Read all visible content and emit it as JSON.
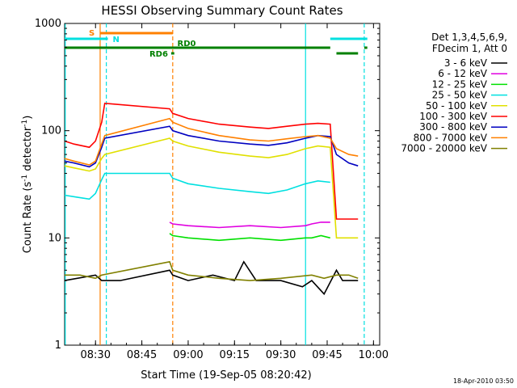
{
  "chart_data": {
    "type": "line",
    "title": "HESSI Observing Summary Count Rates",
    "xlabel": "Start Time (19-Sep-05 08:20:42)",
    "ylabel": "Count Rate (s",
    "ylabel_sup1": "-1",
    "ylabel_mid": " detector",
    "ylabel_sup2": "-1",
    "ylabel_end": ")",
    "footer": "18-Apr-2010 03:50",
    "y_scale": "log",
    "ylim": [
      1,
      1000
    ],
    "xlim_minutes": [
      0,
      102
    ],
    "y_ticks": [
      {
        "value": 1,
        "label": "1"
      },
      {
        "value": 10,
        "label": "10"
      },
      {
        "value": 100,
        "label": "100"
      },
      {
        "value": 1000,
        "label": "1000"
      }
    ],
    "x_ticks": [
      {
        "minute": 10,
        "label": "08:30"
      },
      {
        "minute": 25,
        "label": "08:45"
      },
      {
        "minute": 40,
        "label": "09:00"
      },
      {
        "minute": 55,
        "label": "09:15"
      },
      {
        "minute": 70,
        "label": "09:30"
      },
      {
        "minute": 85,
        "label": "09:45"
      },
      {
        "minute": 100,
        "label": "10:00"
      }
    ],
    "legend_header": [
      "Det 1,3,4,5,6,9,",
      "FDecim 1, Att 0"
    ],
    "legend_placement": "right",
    "series": [
      {
        "name": "3 - 6 keV",
        "color": "#000000",
        "x": [
          0,
          10,
          12,
          18,
          34,
          35,
          40,
          48,
          55,
          58,
          62,
          70,
          77,
          80,
          84,
          88,
          90,
          95
        ],
        "y": [
          4,
          4.5,
          4,
          4,
          5,
          4.5,
          4,
          4.5,
          4,
          6,
          4,
          4,
          3.5,
          4,
          3,
          5,
          4,
          4
        ]
      },
      {
        "name": "6 - 12 keV",
        "color": "#e000e0",
        "x": [
          34,
          35,
          40,
          50,
          60,
          70,
          78,
          80,
          83,
          86
        ],
        "y": [
          14,
          13.5,
          13,
          12.5,
          13,
          12.5,
          13,
          13.5,
          14,
          14
        ]
      },
      {
        "name": "12 - 25 keV",
        "color": "#00e000",
        "x": [
          34,
          35,
          40,
          50,
          60,
          70,
          78,
          80,
          83,
          86
        ],
        "y": [
          11,
          10.5,
          10,
          9.5,
          10,
          9.5,
          10,
          10,
          10.5,
          10
        ]
      },
      {
        "name": "25 - 50 keV",
        "color": "#00e0e0",
        "x": [
          0,
          4,
          8,
          10,
          12,
          13,
          34,
          35,
          40,
          50,
          60,
          66,
          72,
          78,
          82,
          86
        ],
        "y": [
          25,
          24,
          23,
          26,
          35,
          40,
          40,
          36,
          32,
          29,
          27,
          26,
          28,
          32,
          34,
          33
        ]
      },
      {
        "name": "50 - 100 keV",
        "color": "#e0e000",
        "x": [
          0,
          3,
          8,
          10,
          12,
          13,
          34,
          35,
          40,
          50,
          60,
          66,
          72,
          78,
          82,
          86,
          88,
          92,
          95
        ],
        "y": [
          47,
          45,
          42,
          44,
          55,
          60,
          85,
          80,
          72,
          63,
          58,
          56,
          60,
          68,
          72,
          70,
          10,
          10,
          10
        ]
      },
      {
        "name": "100 - 300 keV",
        "color": "#ff0000",
        "x": [
          0,
          3,
          8,
          10,
          12,
          13,
          34,
          35,
          40,
          50,
          60,
          66,
          72,
          78,
          82,
          86,
          88,
          92,
          95
        ],
        "y": [
          80,
          75,
          70,
          80,
          120,
          180,
          160,
          145,
          130,
          115,
          108,
          105,
          110,
          115,
          117,
          115,
          15,
          15,
          15
        ]
      },
      {
        "name": "300 - 800 keV",
        "color": "#0000c0",
        "x": [
          0,
          3,
          8,
          10,
          12,
          13,
          34,
          35,
          40,
          50,
          60,
          66,
          72,
          78,
          82,
          86,
          88,
          92,
          95
        ],
        "y": [
          52,
          50,
          46,
          50,
          70,
          85,
          110,
          100,
          90,
          80,
          75,
          73,
          77,
          85,
          90,
          88,
          60,
          50,
          47
        ]
      },
      {
        "name": "800 - 7000 keV",
        "color": "#ff8000",
        "x": [
          0,
          3,
          8,
          10,
          12,
          13,
          34,
          35,
          40,
          50,
          60,
          66,
          72,
          78,
          82,
          86,
          88,
          92,
          95
        ],
        "y": [
          55,
          52,
          48,
          52,
          75,
          90,
          130,
          120,
          105,
          90,
          82,
          80,
          84,
          88,
          90,
          85,
          68,
          60,
          58
        ]
      },
      {
        "name": "7000 - 20000 keV",
        "color": "#808000",
        "x": [
          0,
          5,
          10,
          12,
          34,
          35,
          40,
          50,
          60,
          70,
          80,
          84,
          88,
          92,
          95
        ],
        "y": [
          4.5,
          4.5,
          4.2,
          4.5,
          6,
          5,
          4.5,
          4.2,
          4,
          4.2,
          4.5,
          4.2,
          4.5,
          4.5,
          4.2
        ]
      }
    ],
    "mode_bars": {
      "S": {
        "label": "S",
        "color": "#ff8000",
        "x_start": 11.5,
        "x_end": 35
      },
      "N": {
        "label": "N",
        "color": "#00e0e0",
        "segments": [
          [
            0,
            14
          ],
          [
            86,
            98
          ]
        ]
      },
      "RD0": {
        "label": "RD0",
        "color": "#008000",
        "segments": [
          [
            0,
            86
          ],
          [
            97,
            98
          ]
        ]
      },
      "RD6": {
        "label": "RD6",
        "color": "#008000",
        "segments": [
          [
            34.5,
            35.5
          ],
          [
            88,
            95
          ]
        ]
      }
    },
    "vertical_markers": [
      {
        "minute": 0.2,
        "color": "#00e0e0",
        "style": "solid"
      },
      {
        "minute": 13.5,
        "color": "#00e0e0",
        "style": "dashed"
      },
      {
        "minute": 11.5,
        "color": "#ff8000",
        "style": "solid"
      },
      {
        "minute": 35,
        "color": "#ff8000",
        "style": "dashed"
      },
      {
        "minute": 78,
        "color": "#00e0e0",
        "style": "solid"
      },
      {
        "minute": 97,
        "color": "#00e0e0",
        "style": "dashed"
      }
    ]
  }
}
